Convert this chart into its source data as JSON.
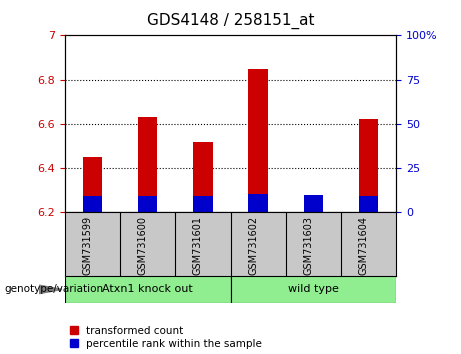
{
  "title": "GDS4148 / 258151_at",
  "categories": [
    "GSM731599",
    "GSM731600",
    "GSM731601",
    "GSM731602",
    "GSM731603",
    "GSM731604"
  ],
  "red_tops": [
    6.45,
    6.63,
    6.52,
    6.85,
    6.275,
    6.62
  ],
  "blue_tops": [
    6.275,
    6.275,
    6.275,
    6.282,
    6.278,
    6.275
  ],
  "bar_bottom": 6.2,
  "ylim_left": [
    6.2,
    7.0
  ],
  "ylim_right": [
    0,
    100
  ],
  "yticks_left": [
    6.2,
    6.4,
    6.6,
    6.8,
    7.0
  ],
  "yticks_right": [
    0,
    25,
    50,
    75,
    100
  ],
  "yticklabels_left": [
    "6.2",
    "6.4",
    "6.6",
    "6.8",
    "7"
  ],
  "yticklabels_right": [
    "0",
    "25",
    "50",
    "75",
    "100%"
  ],
  "group1_label": "Atxn1 knock out",
  "group2_label": "wild type",
  "group1_color": "#90EE90",
  "group2_color": "#90EE90",
  "genotype_label": "genotype/variation",
  "legend_red": "transformed count",
  "legend_blue": "percentile rank within the sample",
  "red_color": "#CC0000",
  "blue_color": "#0000CC",
  "bar_width": 0.35,
  "label_color_left": "#CC0000",
  "label_color_right": "#0000CC",
  "grid_yticks": [
    6.4,
    6.6,
    6.8
  ],
  "bg_color": "#C8C8C8"
}
